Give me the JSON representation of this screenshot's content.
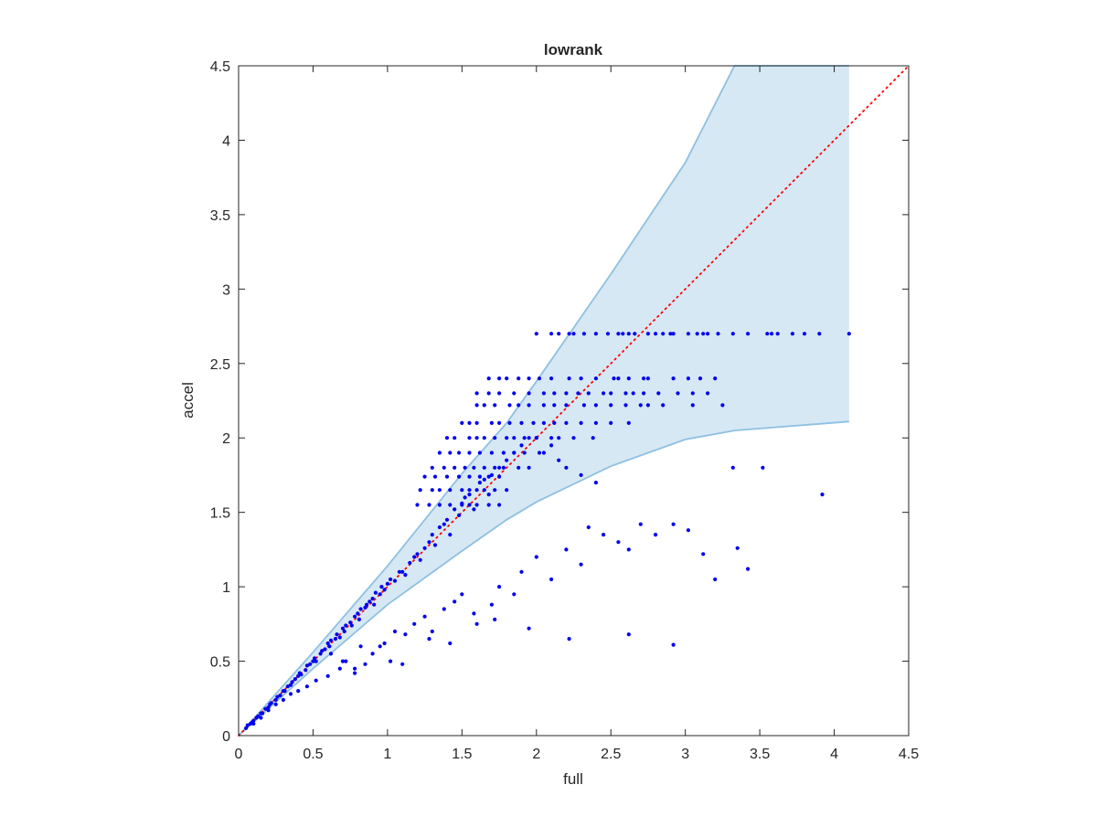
{
  "chart_data": {
    "type": "scatter",
    "title": "lowrank",
    "xlabel": "full",
    "ylabel": "accel",
    "xlim": [
      0,
      4.5
    ],
    "ylim": [
      0,
      4.5
    ],
    "xticks": [
      "0",
      "0.5",
      "1",
      "1.5",
      "2",
      "2.5",
      "3",
      "3.5",
      "4",
      "4.5"
    ],
    "yticks": [
      "0",
      "0.5",
      "1",
      "1.5",
      "2",
      "2.5",
      "3",
      "3.5",
      "4",
      "4.5"
    ],
    "grid": false,
    "legend": "none",
    "colors": {
      "points": "#0000ee",
      "band_fill": "#d6e8f4",
      "band_edge": "#8ec0e2",
      "reference_line": "#ff0000",
      "axes": "#262626"
    },
    "reference_line": {
      "style": "dotted",
      "x": [
        0,
        4.5
      ],
      "y": [
        0,
        4.5
      ]
    },
    "band": {
      "x": [
        0,
        0.5,
        1.0,
        1.5,
        1.8,
        2.0,
        2.5,
        3.0,
        3.33,
        4.1
      ],
      "upper": [
        0,
        0.56,
        1.14,
        1.76,
        2.1,
        2.38,
        3.1,
        3.85,
        4.5,
        4.5
      ],
      "lower": [
        0,
        0.45,
        0.88,
        1.24,
        1.45,
        1.57,
        1.81,
        1.99,
        2.05,
        2.11
      ]
    },
    "scatter": {
      "x": [
        0.05,
        0.06,
        0.08,
        0.09,
        0.1,
        0.12,
        0.13,
        0.15,
        0.16,
        0.18,
        0.2,
        0.21,
        0.22,
        0.25,
        0.26,
        0.28,
        0.3,
        0.31,
        0.33,
        0.35,
        0.36,
        0.38,
        0.4,
        0.41,
        0.42,
        0.45,
        0.46,
        0.48,
        0.5,
        0.51,
        0.52,
        0.55,
        0.56,
        0.58,
        0.6,
        0.61,
        0.62,
        0.65,
        0.66,
        0.68,
        0.7,
        0.71,
        0.72,
        0.75,
        0.76,
        0.78,
        0.8,
        0.81,
        0.82,
        0.85,
        0.86,
        0.88,
        0.9,
        0.91,
        0.92,
        0.95,
        0.96,
        0.98,
        1.0,
        1.02,
        1.05,
        1.08,
        1.1,
        1.12,
        1.15,
        1.18,
        1.2,
        1.22,
        1.25,
        1.28,
        1.3,
        1.32,
        1.35,
        1.38,
        1.4,
        1.42,
        1.45,
        1.48,
        1.5,
        1.52,
        1.55,
        1.58,
        1.6,
        1.62,
        1.65,
        1.68,
        1.7,
        1.75,
        1.8,
        1.85,
        1.9,
        1.95,
        2.0,
        2.05,
        2.1,
        2.15,
        2.2,
        2.3,
        2.4,
        0.62,
        0.7,
        0.78,
        0.82,
        0.9,
        0.98,
        1.05,
        1.1,
        1.18,
        1.25,
        1.3,
        1.38,
        1.45,
        1.5,
        1.6,
        1.7,
        1.75,
        1.85,
        1.9,
        2.0,
        2.1,
        2.2,
        2.3,
        2.35,
        2.45,
        2.55,
        2.62,
        2.7,
        2.8,
        2.92,
        3.02,
        3.12,
        3.2,
        3.32,
        3.35,
        3.42,
        3.52,
        3.92,
        2.92,
        2.62,
        2.22,
        1.95,
        1.72,
        1.58,
        1.42,
        1.28,
        1.12,
        1.02,
        0.95,
        0.85,
        0.78,
        0.72,
        0.68,
        0.6,
        0.52,
        0.46,
        0.4,
        0.35,
        0.3,
        0.25,
        0.2,
        0.15,
        0.1,
        2.0,
        2.1,
        2.15,
        2.22,
        2.25,
        2.32,
        2.4,
        2.48,
        2.55,
        2.58,
        2.62,
        2.66,
        2.75,
        2.8,
        2.85,
        2.9,
        2.92,
        3.02,
        3.08,
        3.12,
        3.15,
        3.22,
        3.32,
        3.42,
        3.55,
        3.58,
        3.62,
        3.72,
        3.8,
        3.9,
        4.1,
        1.68,
        1.75,
        1.8,
        1.88,
        1.95,
        2.02,
        2.1,
        2.22,
        2.3,
        2.4,
        2.52,
        2.55,
        2.62,
        2.72,
        2.75,
        2.92,
        3.02,
        3.1,
        3.2,
        1.6,
        1.68,
        1.75,
        1.85,
        1.95,
        2.05,
        2.12,
        2.2,
        2.28,
        2.35,
        2.45,
        2.5,
        2.6,
        2.65,
        2.72,
        2.82,
        2.95,
        3.05,
        3.15,
        1.6,
        1.65,
        1.72,
        1.82,
        1.88,
        1.95,
        2.05,
        2.12,
        2.2,
        2.32,
        2.4,
        2.5,
        2.6,
        2.7,
        2.75,
        2.85,
        3.05,
        3.25,
        1.5,
        1.55,
        1.6,
        1.7,
        1.75,
        1.82,
        1.9,
        1.98,
        2.05,
        2.12,
        2.2,
        2.3,
        2.4,
        2.5,
        2.62,
        1.4,
        1.45,
        1.55,
        1.6,
        1.65,
        1.72,
        1.8,
        1.85,
        1.92,
        2.0,
        2.1,
        2.15,
        2.25,
        2.38,
        1.35,
        1.42,
        1.48,
        1.55,
        1.62,
        1.7,
        1.78,
        1.85,
        1.92,
        2.02,
        1.3,
        1.38,
        1.45,
        1.52,
        1.58,
        1.65,
        1.72,
        1.78,
        1.88,
        1.95,
        1.25,
        1.32,
        1.4,
        1.48,
        1.55,
        1.62,
        1.68,
        1.75,
        1.22,
        1.3,
        1.35,
        1.42,
        1.5,
        1.55,
        1.65,
        1.72,
        1.8,
        1.2,
        1.28,
        1.35,
        1.42,
        1.5,
        1.55,
        1.6,
        1.68,
        1.75
      ],
      "y": [
        0.05,
        0.07,
        0.08,
        0.09,
        0.1,
        0.12,
        0.13,
        0.15,
        0.15,
        0.18,
        0.19,
        0.21,
        0.22,
        0.24,
        0.26,
        0.27,
        0.3,
        0.3,
        0.33,
        0.34,
        0.36,
        0.38,
        0.4,
        0.42,
        0.41,
        0.44,
        0.47,
        0.48,
        0.5,
        0.52,
        0.5,
        0.55,
        0.57,
        0.58,
        0.62,
        0.6,
        0.64,
        0.65,
        0.68,
        0.66,
        0.72,
        0.7,
        0.74,
        0.76,
        0.74,
        0.8,
        0.82,
        0.78,
        0.85,
        0.86,
        0.88,
        0.9,
        0.92,
        0.88,
        0.96,
        0.95,
        1.0,
        0.98,
        1.02,
        1.05,
        1.04,
        1.1,
        1.1,
        1.08,
        1.16,
        1.2,
        1.22,
        1.18,
        1.26,
        1.3,
        1.35,
        1.28,
        1.4,
        1.42,
        1.45,
        1.35,
        1.52,
        1.48,
        1.56,
        1.6,
        1.62,
        1.52,
        1.65,
        1.7,
        1.72,
        1.62,
        1.75,
        1.8,
        1.85,
        1.9,
        1.95,
        2.0,
        2.0,
        1.9,
        1.95,
        1.85,
        1.8,
        1.75,
        1.7,
        0.55,
        0.5,
        0.45,
        0.6,
        0.55,
        0.62,
        0.7,
        0.48,
        0.75,
        0.8,
        0.7,
        0.85,
        0.9,
        0.95,
        0.75,
        0.88,
        1.0,
        0.95,
        1.1,
        1.2,
        1.05,
        1.25,
        1.15,
        1.4,
        1.35,
        1.3,
        1.25,
        1.42,
        1.35,
        1.42,
        1.38,
        1.22,
        1.05,
        1.8,
        1.26,
        1.12,
        1.8,
        1.62,
        0.61,
        0.68,
        0.65,
        0.72,
        0.78,
        0.82,
        0.62,
        0.65,
        0.68,
        0.5,
        0.6,
        0.48,
        0.42,
        0.5,
        0.45,
        0.4,
        0.37,
        0.33,
        0.3,
        0.28,
        0.24,
        0.21,
        0.17,
        0.12,
        0.08,
        2.7,
        2.7,
        2.7,
        2.7,
        2.7,
        2.7,
        2.7,
        2.7,
        2.7,
        2.7,
        2.7,
        2.7,
        2.7,
        2.7,
        2.7,
        2.7,
        2.7,
        2.7,
        2.7,
        2.7,
        2.7,
        2.7,
        2.7,
        2.7,
        2.7,
        2.7,
        2.7,
        2.7,
        2.7,
        2.7,
        2.7,
        2.4,
        2.4,
        2.4,
        2.4,
        2.4,
        2.4,
        2.4,
        2.4,
        2.4,
        2.4,
        2.4,
        2.4,
        2.4,
        2.4,
        2.4,
        2.4,
        2.4,
        2.4,
        2.4,
        2.3,
        2.3,
        2.3,
        2.3,
        2.3,
        2.3,
        2.3,
        2.3,
        2.3,
        2.3,
        2.3,
        2.3,
        2.3,
        2.3,
        2.3,
        2.3,
        2.3,
        2.3,
        2.3,
        2.22,
        2.22,
        2.22,
        2.22,
        2.22,
        2.22,
        2.22,
        2.22,
        2.22,
        2.22,
        2.22,
        2.22,
        2.22,
        2.22,
        2.22,
        2.22,
        2.22,
        2.22,
        2.1,
        2.1,
        2.1,
        2.1,
        2.1,
        2.1,
        2.1,
        2.1,
        2.1,
        2.1,
        2.1,
        2.1,
        2.1,
        2.1,
        2.1,
        2.0,
        2.0,
        2.0,
        2.0,
        2.0,
        2.0,
        2.0,
        2.0,
        2.0,
        2.0,
        2.0,
        2.0,
        2.0,
        2.0,
        1.9,
        1.9,
        1.9,
        1.9,
        1.9,
        1.9,
        1.9,
        1.9,
        1.9,
        1.9,
        1.8,
        1.8,
        1.8,
        1.8,
        1.8,
        1.8,
        1.8,
        1.8,
        1.8,
        1.8,
        1.74,
        1.74,
        1.74,
        1.74,
        1.74,
        1.74,
        1.74,
        1.74,
        1.65,
        1.65,
        1.65,
        1.65,
        1.65,
        1.65,
        1.65,
        1.65,
        1.65,
        1.55,
        1.55,
        1.55,
        1.55,
        1.55,
        1.55,
        1.55,
        1.55,
        1.55
      ]
    }
  }
}
